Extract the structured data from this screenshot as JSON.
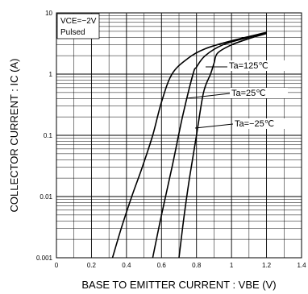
{
  "chart_data": {
    "type": "line",
    "title": "",
    "xlabel": "BASE TO EMITTER CURRENT : VBE (V)",
    "ylabel": "COLLECTOR CURRENT : IC (A)",
    "xlim": [
      0,
      1.4
    ],
    "ylim": [
      0.001,
      10
    ],
    "yscale": "log",
    "grid": true,
    "x_ticks": [
      "0",
      "0.2",
      "0.4",
      "0.6",
      "0.8",
      "1",
      "1.2",
      "1.4"
    ],
    "y_ticks": [
      "0.001",
      "0.01",
      "0.1",
      "1",
      "10"
    ],
    "notes": [
      "VCE=−2V",
      "Pulsed"
    ],
    "series": [
      {
        "name": "Ta=125℃",
        "x": [
          0.32,
          0.37,
          0.43,
          0.49,
          0.55,
          0.6,
          0.66,
          0.75,
          0.85,
          1.0,
          1.2
        ],
        "y": [
          0.001,
          0.003,
          0.01,
          0.03,
          0.1,
          0.35,
          1.0,
          1.8,
          2.6,
          3.5,
          4.8
        ]
      },
      {
        "name": "Ta=25℃",
        "x": [
          0.55,
          0.6,
          0.66,
          0.72,
          0.78,
          0.8,
          0.85,
          0.95,
          1.1,
          1.2
        ],
        "y": [
          0.001,
          0.005,
          0.03,
          0.2,
          1.0,
          1.3,
          2.0,
          3.0,
          4.0,
          4.7
        ]
      },
      {
        "name": "Ta=−25℃",
        "x": [
          0.7,
          0.73,
          0.76,
          0.8,
          0.84,
          0.88,
          0.9,
          0.92,
          1.0,
          1.1,
          1.2
        ],
        "y": [
          0.001,
          0.005,
          0.02,
          0.1,
          0.5,
          1.0,
          1.5,
          2.2,
          3.0,
          3.8,
          4.6
        ]
      }
    ],
    "annotations": [
      {
        "text": "Ta=125℃",
        "series": 0
      },
      {
        "text": "Ta=25℃",
        "series": 1
      },
      {
        "text": "Ta=−25℃",
        "series": 2
      }
    ]
  }
}
